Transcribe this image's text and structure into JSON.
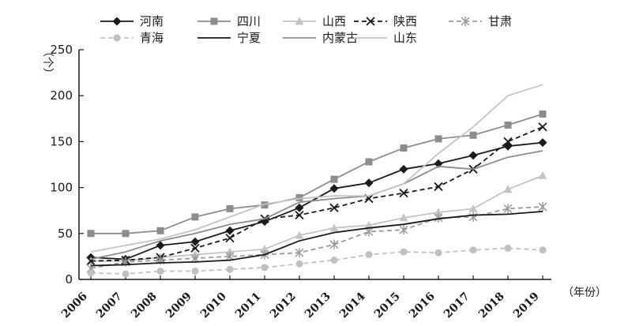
{
  "chart_data": {
    "type": "line",
    "x": [
      "2006",
      "2007",
      "2008",
      "2009",
      "2010",
      "2011",
      "2012",
      "2013",
      "2014",
      "2015",
      "2016",
      "2017",
      "2018",
      "2019"
    ],
    "ylim": [
      0,
      250
    ],
    "yticks": [
      0,
      50,
      100,
      150,
      200,
      250
    ],
    "ylabel": "（个）",
    "xlabel": "（年份）",
    "grid": false,
    "legend_position": "top",
    "series": [
      {
        "name": "河南",
        "color": "#1a1a1a",
        "marker": "diamond",
        "dash": "solid",
        "values": [
          24,
          22,
          37,
          41,
          53,
          63,
          78,
          99,
          105,
          120,
          126,
          135,
          145,
          149
        ]
      },
      {
        "name": "四川",
        "color": "#8c8c8c",
        "marker": "square",
        "dash": "solid",
        "values": [
          50,
          50,
          53,
          68,
          77,
          81,
          89,
          109,
          128,
          143,
          153,
          157,
          168,
          180
        ]
      },
      {
        "name": "山西",
        "color": "#c4c4c4",
        "marker": "triangle",
        "dash": "solid",
        "values": [
          20,
          20,
          24,
          27,
          30,
          33,
          48,
          56,
          59,
          67,
          73,
          77,
          98,
          113
        ]
      },
      {
        "name": "陕西",
        "color": "#1a1a1a",
        "marker": "x",
        "dash": "dashed",
        "values": [
          20,
          21,
          24,
          34,
          45,
          66,
          70,
          78,
          88,
          94,
          101,
          120,
          150,
          166
        ]
      },
      {
        "name": "甘肃",
        "color": "#9a9a9a",
        "marker": "star",
        "dash": "dashed",
        "values": [
          12,
          19,
          21,
          23,
          25,
          27,
          29,
          38,
          52,
          54,
          67,
          68,
          77,
          79
        ]
      },
      {
        "name": "青海",
        "color": "#c0c0c0",
        "marker": "circle",
        "dash": "dashed",
        "values": [
          7,
          6,
          9,
          9,
          11,
          13,
          17,
          21,
          27,
          30,
          29,
          32,
          34,
          32
        ]
      },
      {
        "name": "宁夏",
        "color": "#1a1a1a",
        "marker": "none",
        "dash": "solid",
        "values": [
          15,
          16,
          18,
          19,
          21,
          27,
          42,
          51,
          56,
          60,
          66,
          70,
          71,
          74
        ]
      },
      {
        "name": "内蒙古",
        "color": "#8c8c8c",
        "marker": "none",
        "dash": "solid",
        "values": [
          22,
          30,
          42,
          50,
          60,
          66,
          84,
          88,
          91,
          104,
          123,
          120,
          133,
          140
        ]
      },
      {
        "name": "山东",
        "color": "#c4c4c4",
        "marker": "none",
        "dash": "solid",
        "values": [
          30,
          37,
          44,
          54,
          68,
          82,
          88,
          91,
          91,
          104,
          137,
          166,
          200,
          212
        ]
      }
    ]
  }
}
